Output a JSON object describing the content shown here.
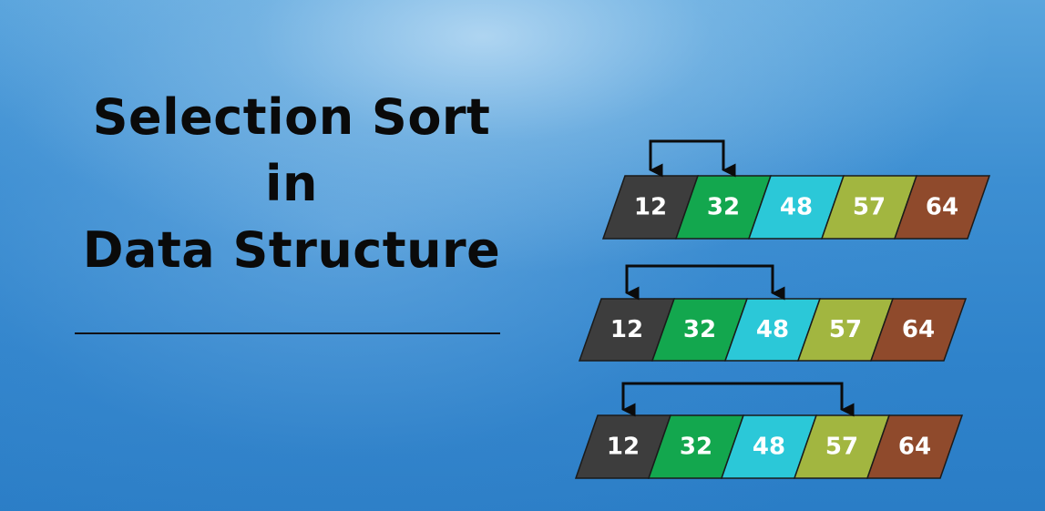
{
  "title": {
    "line1": "Selection Sort",
    "line2": "in",
    "line3": "Data Structure"
  },
  "cell_colors": [
    "#3d3d3d",
    "#13a74e",
    "#2bc8d8",
    "#a2b640",
    "#8f4a2c"
  ],
  "arrow_color": "#0b0b0b",
  "rows": [
    {
      "values": [
        "12",
        "32",
        "48",
        "57",
        "64"
      ],
      "swap": [
        0,
        1
      ]
    },
    {
      "values": [
        "12",
        "32",
        "48",
        "57",
        "64"
      ],
      "swap": [
        0,
        2
      ]
    },
    {
      "values": [
        "12",
        "32",
        "48",
        "57",
        "64"
      ],
      "swap": [
        0,
        3
      ]
    }
  ]
}
